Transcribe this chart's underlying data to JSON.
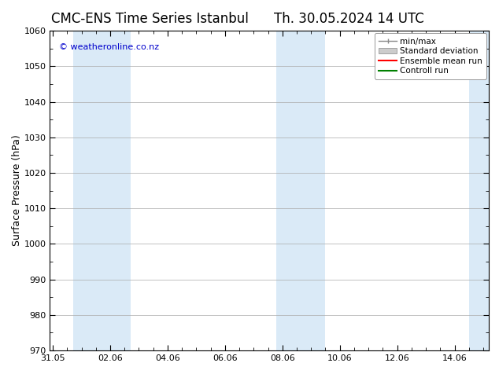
{
  "title_left": "CMC-ENS Time Series Istanbul",
  "title_right": "Th. 30.05.2024 14 UTC",
  "ylabel": "Surface Pressure (hPa)",
  "ylim": [
    970,
    1060
  ],
  "yticks": [
    970,
    980,
    990,
    1000,
    1010,
    1020,
    1030,
    1040,
    1050,
    1060
  ],
  "xtick_labels": [
    "31.05",
    "02.06",
    "04.06",
    "06.06",
    "08.06",
    "10.06",
    "12.06",
    "14.06"
  ],
  "xtick_positions": [
    0,
    2,
    4,
    6,
    8,
    10,
    12,
    14
  ],
  "xlim": [
    -0.1,
    15.2
  ],
  "background_color": "#ffffff",
  "plot_bg_color": "#ffffff",
  "shade_regions": [
    {
      "xmin": 0.7,
      "xmax": 2.7,
      "color": "#daeaf7"
    },
    {
      "xmin": 7.8,
      "xmax": 9.5,
      "color": "#daeaf7"
    },
    {
      "xmin": 14.5,
      "xmax": 15.2,
      "color": "#daeaf7"
    }
  ],
  "watermark_text": "© weatheronline.co.nz",
  "watermark_color": "#0000cc",
  "watermark_fontsize": 8,
  "title_fontsize": 12,
  "tick_fontsize": 8,
  "ylabel_fontsize": 9,
  "grid_color": "#aaaaaa",
  "minor_tick_count": 3,
  "legend_no_frame": false
}
